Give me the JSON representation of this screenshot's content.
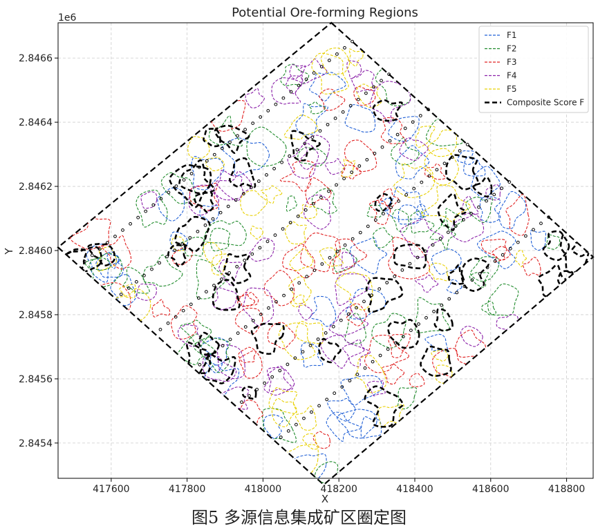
{
  "chart_data": {
    "type": "line",
    "title": "Potential Ore-forming Regions",
    "xlabel": "X",
    "ylabel": "Y",
    "y_offset_label": "1e6",
    "xlim": [
      417460,
      418870
    ],
    "ylim": [
      2.84529,
      2.84671
    ],
    "x_ticks": [
      417600,
      417800,
      418000,
      418200,
      418400,
      418600,
      418800
    ],
    "x_tick_labels": [
      "417600",
      "417800",
      "418000",
      "418200",
      "418400",
      "418600",
      "418800"
    ],
    "y_ticks": [
      2.8454,
      2.8456,
      2.8458,
      2.846,
      2.8462,
      2.8464,
      2.8466
    ],
    "y_tick_labels": [
      "2.8454",
      "2.8456",
      "2.8458",
      "2.8460",
      "2.8462",
      "2.8464",
      "2.8466"
    ],
    "grid": true,
    "legend_position": "top-right",
    "region_corners": [
      [
        418180,
        2.84671
      ],
      [
        418870,
        2.84598
      ],
      [
        418160,
        2.84527
      ],
      [
        417460,
        2.84601
      ]
    ],
    "series": [
      {
        "name": "F1",
        "color": "#1f5fd6",
        "style": "dashed"
      },
      {
        "name": "F2",
        "color": "#1e8a2a",
        "style": "dashed"
      },
      {
        "name": "F3",
        "color": "#e02020",
        "style": "dashed"
      },
      {
        "name": "F4",
        "color": "#8a1fa8",
        "style": "dashed"
      },
      {
        "name": "F5",
        "color": "#e8d000",
        "style": "dashed"
      },
      {
        "name": "Composite Score F",
        "color": "#000000",
        "style": "dashed-bold"
      }
    ]
  },
  "caption": "图5 多源信息集成矿区圈定图"
}
